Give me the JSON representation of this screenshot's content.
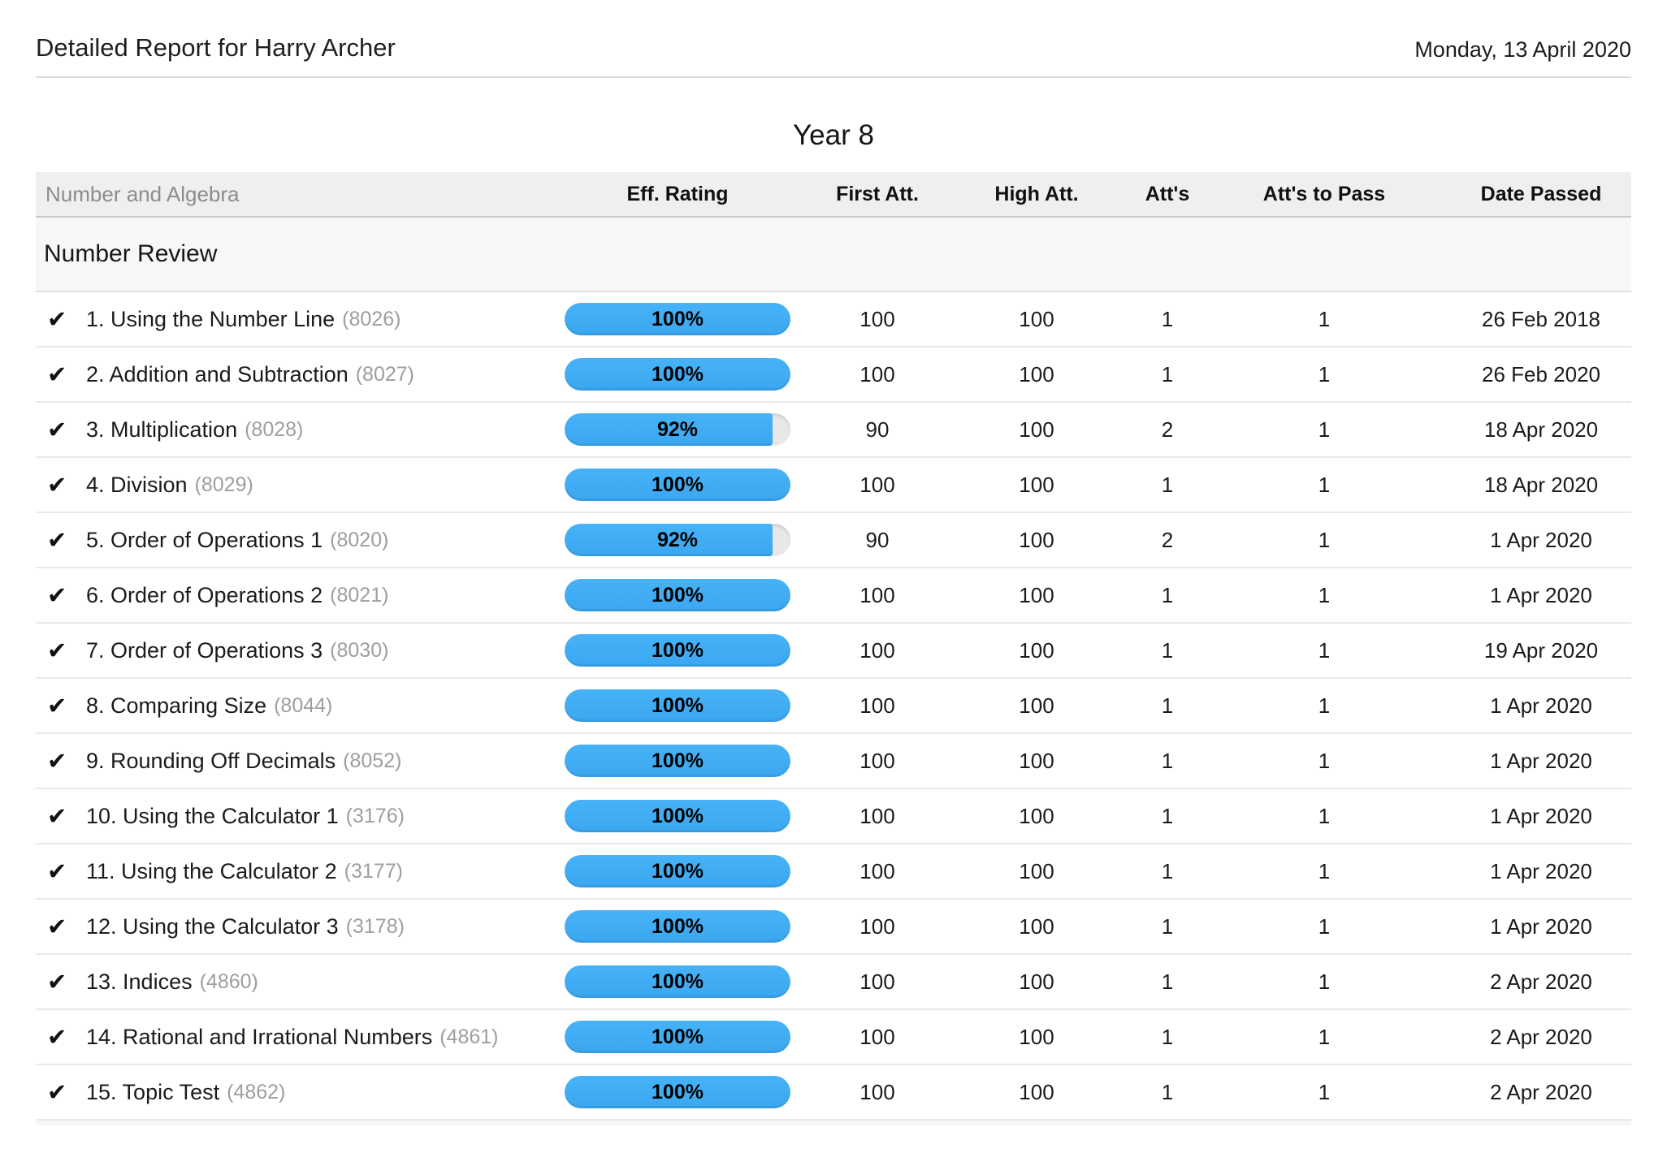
{
  "header": {
    "title": "Detailed Report for Harry Archer",
    "date": "Monday, 13 April 2020"
  },
  "year_title": "Year 8",
  "colors": {
    "accent_blue": "#41aef5",
    "pill_track_gray": "#e8e8e8",
    "header_row_gray": "#efefef",
    "section_row_gray": "#f7f7f7"
  },
  "icons": {
    "completed_check": "✔"
  },
  "table": {
    "columns": {
      "category": "Number and Algebra",
      "eff_rating": "Eff. Rating",
      "first_att": "First Att.",
      "high_att": "High Att.",
      "atts": "Att's",
      "atts_to_pass": "Att's to Pass",
      "date_passed": "Date Passed"
    },
    "section": "Number Review",
    "rows": [
      {
        "name": "1. Using the Number Line",
        "id": "(8026)",
        "eff_percent": 100,
        "eff_label": "100%",
        "first_att": "100",
        "high_att": "100",
        "atts": "1",
        "atts_to_pass": "1",
        "date_passed": "26 Feb 2018"
      },
      {
        "name": "2. Addition and Subtraction",
        "id": "(8027)",
        "eff_percent": 100,
        "eff_label": "100%",
        "first_att": "100",
        "high_att": "100",
        "atts": "1",
        "atts_to_pass": "1",
        "date_passed": "26 Feb 2020"
      },
      {
        "name": "3. Multiplication",
        "id": "(8028)",
        "eff_percent": 92,
        "eff_label": "92%",
        "first_att": "90",
        "high_att": "100",
        "atts": "2",
        "atts_to_pass": "1",
        "date_passed": "18 Apr 2020"
      },
      {
        "name": "4. Division",
        "id": "(8029)",
        "eff_percent": 100,
        "eff_label": "100%",
        "first_att": "100",
        "high_att": "100",
        "atts": "1",
        "atts_to_pass": "1",
        "date_passed": "18 Apr 2020"
      },
      {
        "name": "5. Order of Operations 1",
        "id": "(8020)",
        "eff_percent": 92,
        "eff_label": "92%",
        "first_att": "90",
        "high_att": "100",
        "atts": "2",
        "atts_to_pass": "1",
        "date_passed": "1 Apr 2020"
      },
      {
        "name": "6. Order of Operations 2",
        "id": "(8021)",
        "eff_percent": 100,
        "eff_label": "100%",
        "first_att": "100",
        "high_att": "100",
        "atts": "1",
        "atts_to_pass": "1",
        "date_passed": "1 Apr 2020"
      },
      {
        "name": "7. Order of Operations 3",
        "id": "(8030)",
        "eff_percent": 100,
        "eff_label": "100%",
        "first_att": "100",
        "high_att": "100",
        "atts": "1",
        "atts_to_pass": "1",
        "date_passed": "19 Apr 2020"
      },
      {
        "name": "8. Comparing Size",
        "id": "(8044)",
        "eff_percent": 100,
        "eff_label": "100%",
        "first_att": "100",
        "high_att": "100",
        "atts": "1",
        "atts_to_pass": "1",
        "date_passed": "1 Apr 2020"
      },
      {
        "name": "9. Rounding Off Decimals",
        "id": "(8052)",
        "eff_percent": 100,
        "eff_label": "100%",
        "first_att": "100",
        "high_att": "100",
        "atts": "1",
        "atts_to_pass": "1",
        "date_passed": "1 Apr 2020"
      },
      {
        "name": "10. Using the Calculator 1",
        "id": "(3176)",
        "eff_percent": 100,
        "eff_label": "100%",
        "first_att": "100",
        "high_att": "100",
        "atts": "1",
        "atts_to_pass": "1",
        "date_passed": "1 Apr 2020"
      },
      {
        "name": "11. Using the Calculator 2",
        "id": "(3177)",
        "eff_percent": 100,
        "eff_label": "100%",
        "first_att": "100",
        "high_att": "100",
        "atts": "1",
        "atts_to_pass": "1",
        "date_passed": "1 Apr 2020"
      },
      {
        "name": "12. Using the Calculator 3",
        "id": "(3178)",
        "eff_percent": 100,
        "eff_label": "100%",
        "first_att": "100",
        "high_att": "100",
        "atts": "1",
        "atts_to_pass": "1",
        "date_passed": "1 Apr 2020"
      },
      {
        "name": "13. Indices",
        "id": "(4860)",
        "eff_percent": 100,
        "eff_label": "100%",
        "first_att": "100",
        "high_att": "100",
        "atts": "1",
        "atts_to_pass": "1",
        "date_passed": "2 Apr 2020"
      },
      {
        "name": "14. Rational and Irrational Numbers",
        "id": "(4861)",
        "eff_percent": 100,
        "eff_label": "100%",
        "first_att": "100",
        "high_att": "100",
        "atts": "1",
        "atts_to_pass": "1",
        "date_passed": "2 Apr 2020"
      },
      {
        "name": "15. Topic Test",
        "id": "(4862)",
        "eff_percent": 100,
        "eff_label": "100%",
        "first_att": "100",
        "high_att": "100",
        "atts": "1",
        "atts_to_pass": "1",
        "date_passed": "2 Apr 2020"
      }
    ]
  }
}
